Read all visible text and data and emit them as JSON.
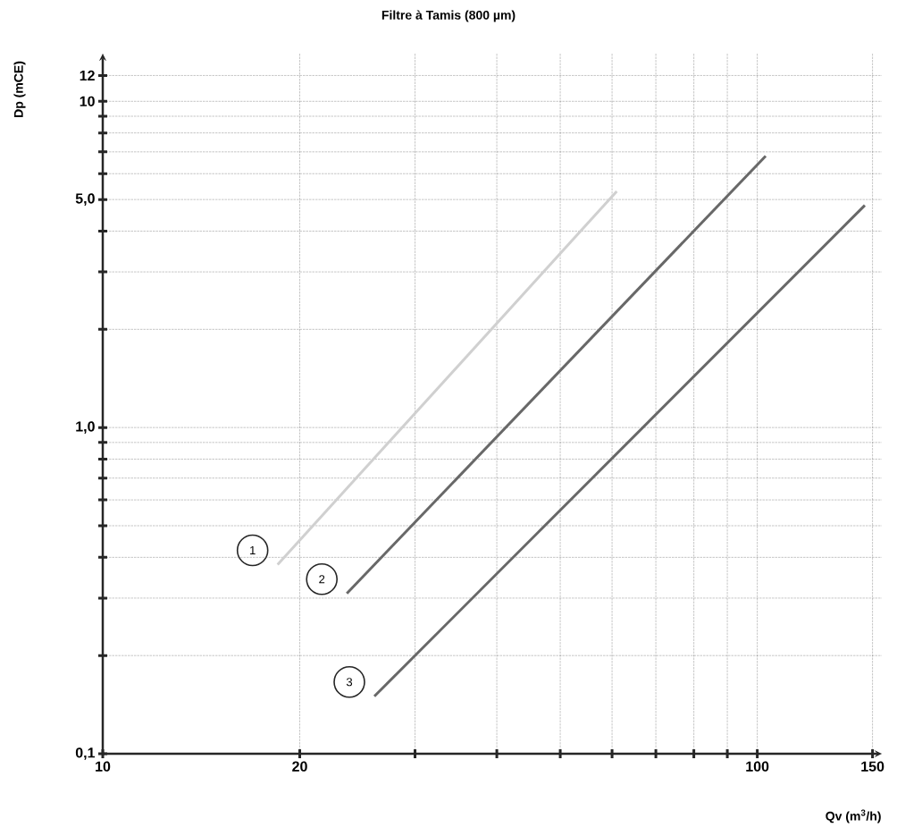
{
  "chart_data": {
    "type": "line",
    "title": "Filtre à Tamis (800 µm)",
    "xlabel": "Qv (m$^{3}$/h)",
    "ylabel": "Dp (mCE)",
    "log": "xy",
    "grid": true,
    "xlim": [
      10,
      155
    ],
    "ylim": [
      0.1,
      14
    ],
    "xticks": [
      10,
      20,
      {
        "value": 30,
        "label": null
      },
      {
        "value": 40,
        "label": null
      },
      {
        "value": 50,
        "label": null
      },
      {
        "value": 60,
        "label": null
      },
      {
        "value": 70,
        "label": null
      },
      {
        "value": 80,
        "label": null
      },
      {
        "value": 90,
        "label": null
      },
      100,
      150
    ],
    "yticks": [
      {
        "value": 0.1,
        "label": "0,1"
      },
      {
        "value": 0.2,
        "label": null
      },
      {
        "value": 0.3,
        "label": null
      },
      {
        "value": 0.4,
        "label": null
      },
      {
        "value": 0.5,
        "label": null
      },
      {
        "value": 0.6,
        "label": null
      },
      {
        "value": 0.7,
        "label": null
      },
      {
        "value": 0.8,
        "label": null
      },
      {
        "value": 0.9,
        "label": null
      },
      {
        "value": 1.0,
        "label": "1,0"
      },
      {
        "value": 2,
        "label": null
      },
      {
        "value": 3,
        "label": null
      },
      {
        "value": 4,
        "label": null
      },
      {
        "value": 5.0,
        "label": "5,0"
      },
      {
        "value": 6,
        "label": null
      },
      {
        "value": 7,
        "label": null
      },
      {
        "value": 8,
        "label": null
      },
      {
        "value": 9,
        "label": null
      },
      10,
      12
    ],
    "series": [
      {
        "name": "1",
        "color": "#d0d0d0",
        "x": [
          18.5,
          61
        ],
        "values": [
          0.38,
          5.3
        ]
      },
      {
        "name": "2",
        "color": "#686868",
        "x": [
          23.6,
          103
        ],
        "values": [
          0.31,
          6.8
        ]
      },
      {
        "name": "3",
        "color": "#686868",
        "x": [
          26,
          146
        ],
        "values": [
          0.15,
          4.8
        ]
      }
    ]
  }
}
